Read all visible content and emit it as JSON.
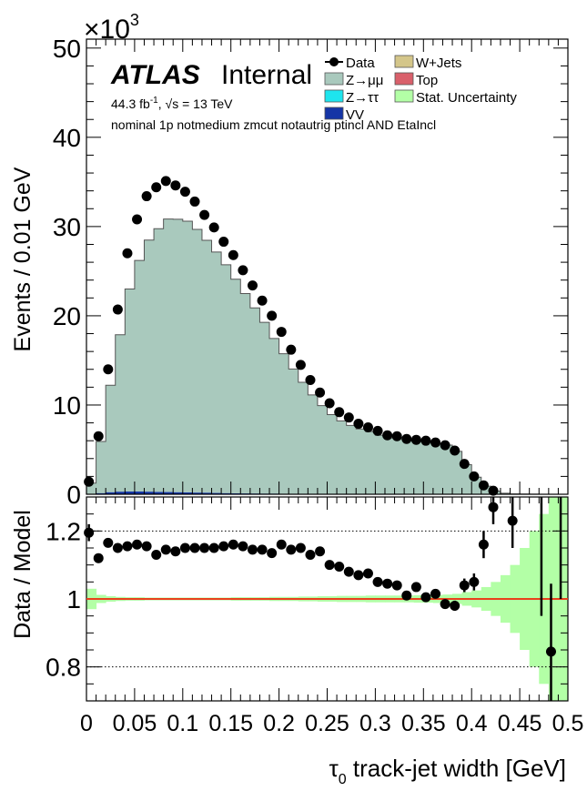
{
  "chart_data": [
    {
      "type": "area",
      "panel": "main",
      "ylabel": "Events / 0.01 GeV",
      "yexp": "×10",
      "yexp_power": "3",
      "ylim": [
        0,
        51
      ],
      "yticks": [
        "0",
        "10",
        "20",
        "30",
        "40",
        "50"
      ],
      "xlim": [
        0,
        0.5
      ],
      "atlas_label": "ATLAS",
      "atlas_status": "Internal",
      "lumi_text": "44.3 fb",
      "lumi_power": "-1",
      "energy_text": ", √s = 13 TeV",
      "selection_text": "nominal 1p notmedium zmcut notautrig ptincl AND EtaIncl",
      "legend": [
        {
          "label": "Data",
          "color": "#000000",
          "style": "marker"
        },
        {
          "label": "W+Jets",
          "color": "#d4c68a",
          "style": "box"
        },
        {
          "label": "Z→μμ",
          "color": "#a9c9bd",
          "style": "box"
        },
        {
          "label": "Top",
          "color": "#d9606b",
          "style": "box"
        },
        {
          "label": "Z→ττ",
          "color": "#1ee5ee",
          "style": "box"
        },
        {
          "label": "Stat. Uncertainty",
          "color": "#b3ffa6",
          "style": "box"
        },
        {
          "label": "VV",
          "color": "#1535a6",
          "style": "box"
        }
      ],
      "bin_edges": [
        0,
        0.01,
        0.02,
        0.03,
        0.04,
        0.05,
        0.06,
        0.07,
        0.08,
        0.09,
        0.1,
        0.11,
        0.12,
        0.13,
        0.14,
        0.15,
        0.16,
        0.17,
        0.18,
        0.19,
        0.2,
        0.21,
        0.22,
        0.23,
        0.24,
        0.25,
        0.26,
        0.27,
        0.28,
        0.29,
        0.3,
        0.31,
        0.32,
        0.33,
        0.34,
        0.35,
        0.36,
        0.37,
        0.38,
        0.39,
        0.4,
        0.41,
        0.42,
        0.43,
        0.44,
        0.45,
        0.46,
        0.47,
        0.48,
        0.49,
        0.5
      ],
      "series": [
        {
          "name": "Z→μμ",
          "color": "#a9c9bd",
          "values": [
            1.2,
            5.8,
            12.0,
            17.6,
            22.7,
            25.9,
            28.2,
            29.5,
            30.6,
            30.6,
            30.4,
            29.5,
            28.3,
            27.0,
            25.6,
            24.0,
            22.4,
            20.8,
            19.2,
            17.4,
            15.7,
            14.0,
            12.5,
            11.1,
            9.9,
            8.9,
            8.2,
            7.7,
            7.3,
            7.0,
            6.6,
            6.3,
            6.2,
            6.0,
            5.9,
            5.9,
            5.7,
            5.5,
            4.8,
            3.3,
            1.9,
            0.9,
            0.35,
            0.12,
            0.04,
            0.02,
            0.01,
            0.005,
            0.002,
            0.001
          ]
        },
        {
          "name": "VV",
          "color": "#1535a6",
          "values": [
            0.05,
            0.12,
            0.22,
            0.28,
            0.3,
            0.3,
            0.28,
            0.26,
            0.24,
            0.22,
            0.2,
            0.18,
            0.16,
            0.14,
            0.12,
            0.1,
            0.09,
            0.08,
            0.07,
            0.06,
            0.05,
            0.04,
            0.04,
            0.03,
            0.03,
            0.02,
            0.02,
            0.02,
            0.02,
            0.02,
            0.02,
            0.01,
            0.01,
            0.01,
            0.01,
            0.01,
            0.01,
            0.01,
            0.01,
            0.01,
            0.01,
            0,
            0,
            0,
            0,
            0,
            0,
            0,
            0,
            0
          ]
        }
      ],
      "data_points": {
        "name": "Data",
        "x": [
          0.0025,
          0.0125,
          0.0225,
          0.0325,
          0.0425,
          0.0525,
          0.0625,
          0.0725,
          0.0825,
          0.0925,
          0.1025,
          0.1125,
          0.1225,
          0.1325,
          0.1425,
          0.1525,
          0.1625,
          0.1725,
          0.1825,
          0.1925,
          0.2025,
          0.2125,
          0.2225,
          0.2325,
          0.2425,
          0.2525,
          0.2625,
          0.2725,
          0.2825,
          0.2925,
          0.3025,
          0.3125,
          0.3225,
          0.3325,
          0.3425,
          0.3525,
          0.3625,
          0.3725,
          0.3825,
          0.3925,
          0.4025,
          0.4125,
          0.4225,
          0.4325,
          0.4425,
          0.4525,
          0.4625,
          0.4725,
          0.4825,
          0.4925
        ],
        "y": [
          1.4,
          6.5,
          14.0,
          20.7,
          27.0,
          30.8,
          33.4,
          34.4,
          35.1,
          34.6,
          33.9,
          32.8,
          31.3,
          29.9,
          28.3,
          26.8,
          25.1,
          23.4,
          21.7,
          20.0,
          18.2,
          16.2,
          14.5,
          12.8,
          11.4,
          10.2,
          9.2,
          8.6,
          7.9,
          7.5,
          7.1,
          6.6,
          6.5,
          6.2,
          6.1,
          6.0,
          5.8,
          5.5,
          4.9,
          3.4,
          2.0,
          1.0,
          0.4,
          0.15,
          0.05,
          0.02,
          0.01,
          0.005,
          0.002,
          0.001
        ]
      }
    },
    {
      "type": "scatter",
      "panel": "ratio",
      "ylabel": "Data / Model",
      "xlabel": "τ",
      "xlabel_sub": "0",
      "xlabel_rest": " track-jet width [GeV]",
      "ylim": [
        0.7,
        1.3
      ],
      "yticks": [
        "0.8",
        "1",
        "1.2"
      ],
      "xlim": [
        0,
        0.5
      ],
      "xticks": [
        "0",
        "0.05",
        "0.1",
        "0.15",
        "0.2",
        "0.25",
        "0.3",
        "0.35",
        "0.4",
        "0.45",
        "0.5"
      ],
      "reference_line": 1.0,
      "dotted_lines": [
        0.8,
        1.2
      ],
      "stat_uncertainty": {
        "name": "Stat. Uncertainty",
        "halfwidth": [
          0.03,
          0.012,
          0.008,
          0.006,
          0.005,
          0.005,
          0.004,
          0.004,
          0.004,
          0.004,
          0.004,
          0.004,
          0.004,
          0.004,
          0.004,
          0.005,
          0.005,
          0.005,
          0.005,
          0.006,
          0.006,
          0.006,
          0.007,
          0.007,
          0.008,
          0.008,
          0.009,
          0.009,
          0.009,
          0.01,
          0.01,
          0.01,
          0.01,
          0.01,
          0.011,
          0.011,
          0.012,
          0.013,
          0.015,
          0.02,
          0.025,
          0.035,
          0.05,
          0.07,
          0.1,
          0.15,
          0.2,
          0.25,
          0.3,
          0.35
        ]
      },
      "points": {
        "x": [
          0.0025,
          0.0125,
          0.0225,
          0.0325,
          0.0425,
          0.0525,
          0.0625,
          0.0725,
          0.0825,
          0.0925,
          0.1025,
          0.1125,
          0.1225,
          0.1325,
          0.1425,
          0.1525,
          0.1625,
          0.1725,
          0.1825,
          0.1925,
          0.2025,
          0.2125,
          0.2225,
          0.2325,
          0.2425,
          0.2525,
          0.2625,
          0.2725,
          0.2825,
          0.2925,
          0.3025,
          0.3125,
          0.3225,
          0.3325,
          0.3425,
          0.3525,
          0.3625,
          0.3725,
          0.3825,
          0.3925,
          0.4025,
          0.4125,
          0.4225,
          0.4425,
          0.4825
        ],
        "y": [
          1.195,
          1.12,
          1.165,
          1.15,
          1.155,
          1.16,
          1.155,
          1.13,
          1.145,
          1.14,
          1.15,
          1.15,
          1.15,
          1.15,
          1.155,
          1.16,
          1.155,
          1.145,
          1.145,
          1.135,
          1.16,
          1.145,
          1.15,
          1.13,
          1.14,
          1.1,
          1.095,
          1.08,
          1.07,
          1.075,
          1.05,
          1.045,
          1.04,
          1.01,
          1.035,
          1.005,
          1.015,
          0.985,
          0.98,
          1.04,
          1.05,
          1.16,
          1.27,
          1.23,
          0.845
        ],
        "err": [
          0.025,
          0.01,
          0.008,
          0.006,
          0.005,
          0.005,
          0.005,
          0.005,
          0.005,
          0.005,
          0.005,
          0.005,
          0.005,
          0.005,
          0.005,
          0.005,
          0.005,
          0.005,
          0.005,
          0.006,
          0.006,
          0.006,
          0.007,
          0.007,
          0.008,
          0.008,
          0.009,
          0.009,
          0.01,
          0.01,
          0.01,
          0.011,
          0.011,
          0.012,
          0.012,
          0.012,
          0.013,
          0.014,
          0.015,
          0.02,
          0.025,
          0.04,
          0.05,
          0.08,
          0.2
        ]
      }
    }
  ]
}
